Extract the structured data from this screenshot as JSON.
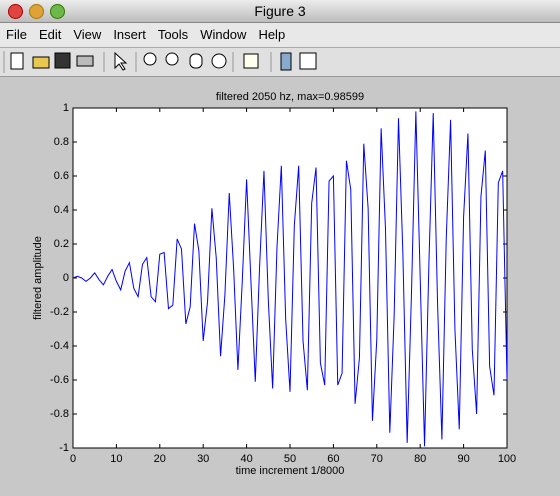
{
  "window": {
    "title": "Figure 3",
    "menu": [
      "File",
      "Edit",
      "View",
      "Insert",
      "Tools",
      "Window",
      "Help"
    ]
  },
  "chart_data": {
    "type": "line",
    "title": "filtered 2050 hz, max=0.98599",
    "xlabel": "time increment 1/8000",
    "ylabel": "filtered amplitude",
    "x": [
      0,
      1,
      2,
      3,
      4,
      5,
      6,
      7,
      8,
      9,
      10,
      11,
      12,
      13,
      14,
      15,
      16,
      17,
      18,
      19,
      20,
      21,
      22,
      23,
      24,
      25,
      26,
      27,
      28,
      29,
      30,
      31,
      32,
      33,
      34,
      35,
      36,
      37,
      38,
      39,
      40,
      41,
      42,
      43,
      44,
      45,
      46,
      47,
      48,
      49,
      50,
      51,
      52,
      53,
      54,
      55,
      56,
      57,
      58,
      59,
      60,
      61,
      62,
      63,
      64,
      65,
      66,
      67,
      68,
      69,
      70,
      71,
      72,
      73,
      74,
      75,
      76,
      77,
      78,
      79,
      80,
      81,
      82,
      83,
      84,
      85,
      86,
      87,
      88,
      89,
      90,
      91,
      92,
      93,
      94,
      95,
      96,
      97,
      98,
      99,
      100
    ],
    "values": [
      0,
      0.01,
      0,
      -0.02,
      0,
      0.03,
      -0.01,
      -0.04,
      0.01,
      0.05,
      -0.02,
      -0.07,
      0.04,
      0.09,
      -0.06,
      -0.11,
      0.08,
      0.12,
      -0.11,
      -0.14,
      0.14,
      0.15,
      -0.18,
      -0.16,
      0.23,
      0.17,
      -0.27,
      -0.17,
      0.32,
      0.16,
      -0.37,
      -0.14,
      0.41,
      0.12,
      -0.46,
      -0.1,
      0.5,
      0.06,
      -0.54,
      -0.02,
      0.58,
      -0.02,
      -0.61,
      0.07,
      0.63,
      -0.13,
      -0.65,
      0.18,
      0.66,
      -0.24,
      -0.67,
      0.31,
      0.66,
      -0.37,
      -0.66,
      0.44,
      0.65,
      -0.5,
      -0.63,
      0.57,
      0.6,
      -0.63,
      -0.56,
      0.69,
      0.52,
      -0.74,
      -0.47,
      0.79,
      0.41,
      -0.84,
      -0.36,
      0.88,
      0.29,
      -0.91,
      -0.22,
      0.94,
      0.15,
      -0.97,
      -0.08,
      0.98,
      0,
      -0.99,
      0.08,
      0.97,
      -0.15,
      -0.95,
      0.23,
      0.93,
      -0.3,
      -0.89,
      0.36,
      0.85,
      -0.42,
      -0.8,
      0.48,
      0.75,
      -0.52,
      -0.69,
      0.56,
      0.63,
      -0.6
    ],
    "color": "#0000ff",
    "xlim": [
      0,
      100
    ],
    "ylim": [
      -1,
      1
    ],
    "xticks": [
      0,
      10,
      20,
      30,
      40,
      50,
      60,
      70,
      80,
      90,
      100
    ],
    "yticks": [
      -1,
      -0.8,
      -0.6,
      -0.4,
      -0.2,
      0,
      0.2,
      0.4,
      0.6,
      0.8,
      1
    ],
    "grid": false
  }
}
